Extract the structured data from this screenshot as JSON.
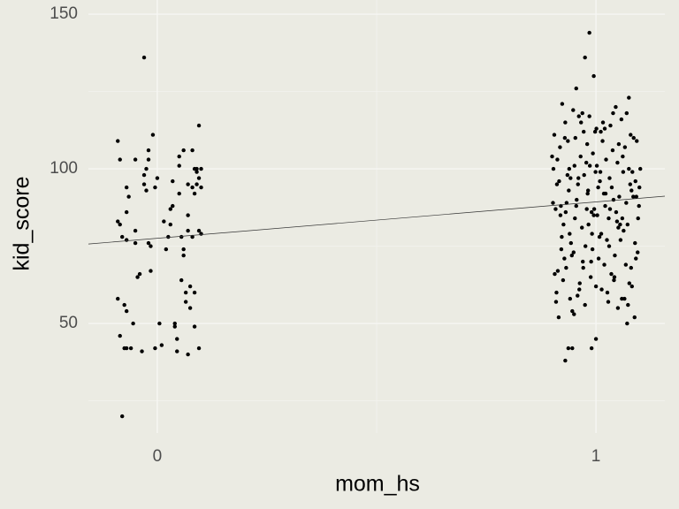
{
  "chart_data": {
    "type": "scatter",
    "x_label": "mom_hs",
    "y_label": "kid_score",
    "xlim": [
      -0.157,
      1.157
    ],
    "ylim": [
      14.6,
      154.6
    ],
    "xticks": [
      0,
      1
    ],
    "yticks": [
      50,
      100,
      150
    ],
    "xminor": [
      0.5
    ],
    "yminor": [
      25,
      75,
      125
    ],
    "grid": true,
    "fit": {
      "intercept": 77.55,
      "slope": 11.77,
      "color": "#333333"
    },
    "series": [
      {
        "color": "#000000",
        "x": [
          -0.09,
          -0.085,
          -0.03,
          -0.08,
          -0.085,
          -0.075,
          -0.07,
          -0.06,
          -0.09,
          -0.075,
          -0.07,
          -0.08,
          -0.07,
          -0.09,
          -0.085,
          -0.07,
          -0.065,
          -0.07,
          -0.05,
          -0.05,
          -0.05,
          -0.055,
          -0.045,
          -0.04,
          -0.035,
          -0.03,
          -0.03,
          -0.025,
          -0.025,
          -0.02,
          -0.02,
          -0.02,
          -0.015,
          -0.015,
          -0.01,
          -0.005,
          -0.005,
          0.0,
          0.005,
          0.01,
          0.015,
          0.02,
          0.025,
          0.03,
          0.03,
          0.035,
          0.035,
          0.04,
          0.04,
          0.045,
          0.045,
          0.05,
          0.05,
          0.05,
          0.055,
          0.055,
          0.06,
          0.06,
          0.06,
          0.065,
          0.065,
          0.07,
          0.07,
          0.07,
          0.075,
          0.075,
          0.07,
          0.08,
          0.08,
          0.08,
          0.085,
          0.085,
          0.085,
          0.085,
          0.09,
          0.09,
          0.09,
          0.095,
          0.095,
          0.095,
          0.095,
          0.1,
          0.1,
          0.1
        ],
        "values": [
          109,
          103,
          136,
          20,
          46,
          42,
          42,
          42,
          58,
          56,
          54,
          78,
          77,
          83,
          82,
          94,
          91,
          86,
          103,
          80,
          76,
          50,
          65,
          66,
          41,
          98,
          95,
          93,
          100,
          106,
          103,
          76,
          75,
          67,
          111,
          42,
          94,
          97,
          50,
          43,
          83,
          74,
          78,
          82,
          87,
          88,
          96,
          50,
          49,
          41,
          45,
          104,
          101,
          92,
          78,
          64,
          106,
          74,
          72,
          60,
          57,
          95,
          85,
          80,
          62,
          55,
          40,
          106,
          94,
          78,
          100,
          92,
          60,
          49,
          100,
          99,
          95,
          114,
          97,
          80,
          42,
          100,
          79,
          94
        ]
      },
      {
        "color": "#000000",
        "x": [
          0.905,
          0.915,
          0.925,
          0.935,
          0.945,
          0.955,
          0.965,
          0.975,
          0.985,
          0.995,
          1.005,
          1.015,
          1.025,
          1.035,
          1.045,
          1.055,
          1.065,
          1.075,
          1.085,
          1.095,
          0.9,
          0.91,
          0.92,
          0.93,
          0.94,
          0.95,
          0.96,
          0.97,
          0.98,
          0.99,
          1.0,
          1.01,
          1.02,
          1.03,
          1.04,
          1.05,
          1.06,
          1.07,
          1.08,
          1.09,
          0.908,
          0.918,
          0.928,
          0.938,
          0.948,
          0.958,
          0.968,
          0.978,
          0.988,
          0.998,
          1.008,
          1.018,
          1.028,
          1.038,
          1.048,
          1.058,
          1.068,
          1.078,
          1.088,
          1.098,
          0.903,
          0.913,
          0.923,
          0.933,
          0.943,
          0.953,
          0.963,
          0.973,
          0.983,
          0.993,
          1.003,
          1.013,
          1.023,
          1.033,
          1.043,
          1.053,
          1.063,
          1.073,
          1.083,
          1.093,
          0.911,
          0.921,
          0.931,
          0.941,
          0.951,
          0.961,
          0.971,
          0.981,
          0.991,
          1.001,
          1.011,
          1.021,
          1.031,
          1.041,
          1.051,
          1.061,
          1.071,
          1.081,
          1.091,
          1.101,
          0.906,
          0.916,
          0.926,
          0.936,
          0.946,
          0.956,
          0.966,
          0.976,
          0.986,
          0.996,
          1.006,
          1.016,
          1.026,
          1.036,
          1.046,
          1.056,
          1.066,
          1.076,
          1.086,
          1.096,
          0.902,
          0.912,
          0.922,
          0.932,
          0.942,
          0.952,
          0.962,
          0.972,
          0.982,
          0.992,
          1.002,
          1.012,
          1.022,
          1.032,
          1.042,
          1.052,
          1.062,
          1.072,
          1.082,
          1.092,
          0.909,
          0.919,
          0.929,
          0.939,
          0.949,
          0.959,
          0.969,
          0.979,
          0.989,
          0.999,
          1.009,
          1.019,
          1.029,
          1.039,
          1.049,
          1.059,
          1.069,
          1.079,
          1.089,
          1.099,
          0.985,
          0.975,
          0.995,
          0.955,
          1.075,
          0.93,
          0.937,
          0.946,
          0.99,
          1.0
        ],
        "values": [
          111,
          52,
          64,
          98,
          72,
          88,
          104,
          56,
          117,
          85,
          94,
          109,
          77,
          66,
          120,
          82,
          58,
          100,
          91,
          73,
          104,
          60,
          88,
          115,
          79,
          53,
          97,
          70,
          108,
          86,
          62,
          99,
          113,
          75,
          90,
          55,
          84,
          118,
          68,
          96,
          87,
          107,
          71,
          93,
          119,
          59,
          81,
          102,
          65,
          112,
          78,
          92,
          57,
          106,
          83,
          116,
          69,
          95,
          52,
          88,
          100,
          67,
          121,
          89,
          76,
          110,
          63,
          98,
          82,
          105,
          85,
          61,
          103,
          114,
          72,
          91,
          80,
          56,
          99,
          109,
          95,
          74,
          86,
          58,
          101,
          117,
          68,
          92,
          79,
          113,
          112,
          88,
          97,
          64,
          81,
          104,
          50,
          93,
          71,
          100,
          66,
          96,
          82,
          109,
          54,
          90,
          115,
          75,
          101,
          87,
          71,
          115,
          60,
          94,
          86,
          77,
          107,
          63,
          110,
          84,
          89,
          103,
          78,
          68,
          97,
          84,
          61,
          112,
          93,
          74,
          101,
          79,
          92,
          87,
          65,
          108,
          99,
          82,
          62,
          91,
          57,
          85,
          110,
          100,
          73,
          95,
          118,
          87,
          70,
          99,
          96,
          69,
          84,
          118,
          102,
          58,
          89,
          111,
          76,
          94,
          144,
          136,
          130,
          126,
          123,
          38,
          42,
          42,
          42,
          45
        ]
      }
    ]
  }
}
